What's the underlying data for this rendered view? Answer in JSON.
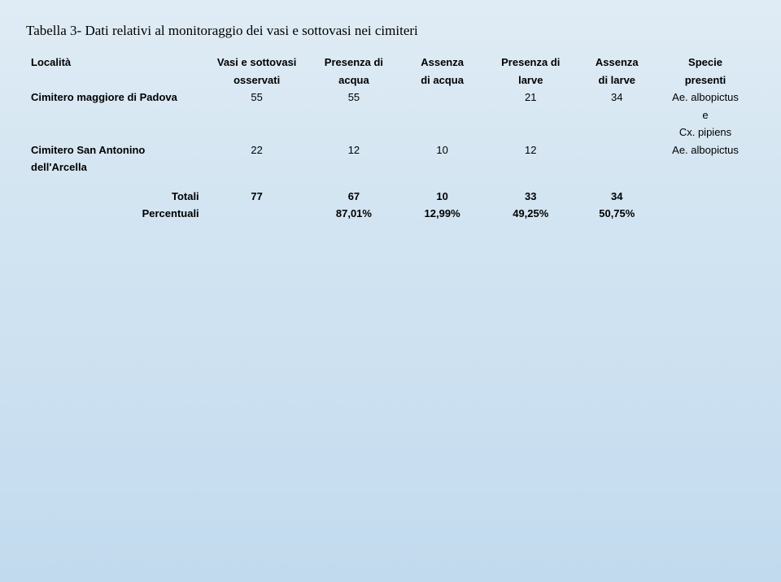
{
  "title": "Tabella 3- Dati relativi al monitoraggio dei vasi e sottovasi nei cimiteri",
  "columns": {
    "localita": {
      "l1": "Località",
      "l2": ""
    },
    "vasi": {
      "l1": "Vasi e sottovasi",
      "l2": "osservati"
    },
    "presAcqua": {
      "l1": "Presenza di",
      "l2": "acqua"
    },
    "assAcqua": {
      "l1": "Assenza",
      "l2": "di acqua"
    },
    "presLarve": {
      "l1": "Presenza di",
      "l2": "larve"
    },
    "assLarve": {
      "l1": "Assenza",
      "l2": "di larve"
    },
    "specie": {
      "l1": "Specie",
      "l2": "presenti"
    }
  },
  "rows": [
    {
      "localita": "Cimitero maggiore di Padova",
      "vasi": "55",
      "presAcqua": "55",
      "assAcqua": "",
      "presLarve": "21",
      "assLarve": "34",
      "specie": {
        "l1": "Ae. albopictus",
        "l2": "e",
        "l3": "Cx. pipiens"
      }
    },
    {
      "localita": "Cimitero San Antonino",
      "localita_l2": "dell'Arcella",
      "vasi": "22",
      "presAcqua": "12",
      "assAcqua": "10",
      "presLarve": "12",
      "assLarve": "",
      "specie": {
        "l1": "Ae. albopictus",
        "l2": "",
        "l3": ""
      }
    }
  ],
  "totals": {
    "label": "Totali",
    "vasi": "77",
    "presAcqua": "67",
    "assAcqua": "10",
    "presLarve": "33",
    "assLarve": "34"
  },
  "percents": {
    "label": "Percentuali",
    "vasi": "",
    "presAcqua": "87,01%",
    "assAcqua": "12,99%",
    "presLarve": "49,25%",
    "assLarve": "50,75%"
  },
  "style": {
    "background_gradient": [
      "#e0ecf5",
      "#d5e6f2",
      "#c8def0",
      "#c2daee"
    ],
    "title_font": "Times New Roman",
    "title_fontsize_pt": 13,
    "table_font": "Arial",
    "table_fontsize_pt": 10,
    "text_color": "#000000",
    "header_weight": "bold",
    "localita_weight": "bold",
    "column_alignments": {
      "localita": "left",
      "rest": "center"
    }
  }
}
